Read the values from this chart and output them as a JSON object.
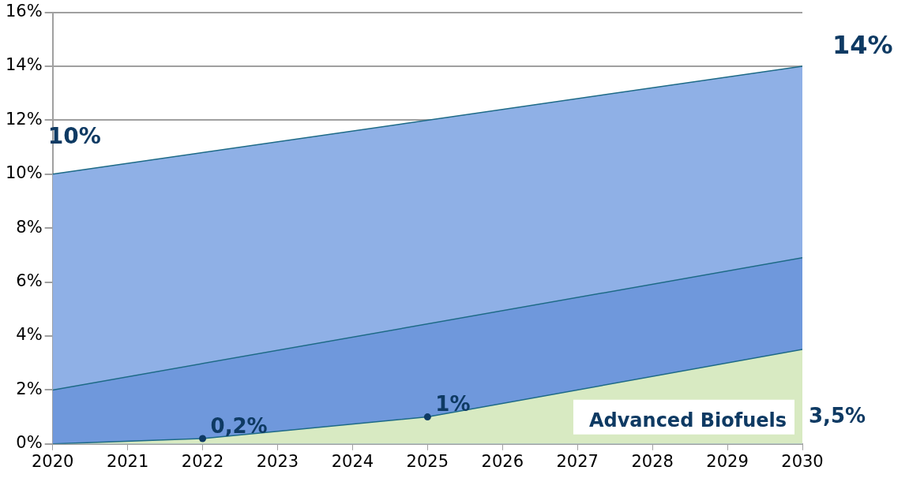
{
  "chart_data": {
    "type": "area",
    "x": [
      2020,
      2030
    ],
    "xlim": [
      2020,
      2030
    ],
    "xticks": [
      2020,
      2021,
      2022,
      2023,
      2024,
      2025,
      2026,
      2027,
      2028,
      2029,
      2030
    ],
    "ylim": [
      0,
      16
    ],
    "yticks": [
      {
        "value": 0,
        "label": "0%"
      },
      {
        "value": 2,
        "label": "2%"
      },
      {
        "value": 4,
        "label": "4%"
      },
      {
        "value": 6,
        "label": "6%"
      },
      {
        "value": 8,
        "label": "8%"
      },
      {
        "value": 10,
        "label": "10%"
      },
      {
        "value": 12,
        "label": "12%"
      },
      {
        "value": 14,
        "label": "14%"
      },
      {
        "value": 16,
        "label": "16%"
      }
    ],
    "grid": "y",
    "legend": false,
    "series": [
      {
        "color": "#8fb0e6",
        "values": [
          10,
          14
        ],
        "value_labels": [
          "10%",
          "14%"
        ]
      },
      {
        "color": "#6f98dc",
        "values": [
          2,
          6.9
        ]
      },
      {
        "name": "Advanced Biofuels",
        "color": "#d8eac2",
        "x": [
          2020,
          2022,
          2025,
          2030
        ],
        "values": [
          0,
          0.2,
          1,
          3.5
        ],
        "value_labels": [
          null,
          "0,2%",
          "1%",
          "3,5%"
        ],
        "marker": "circle"
      }
    ]
  }
}
